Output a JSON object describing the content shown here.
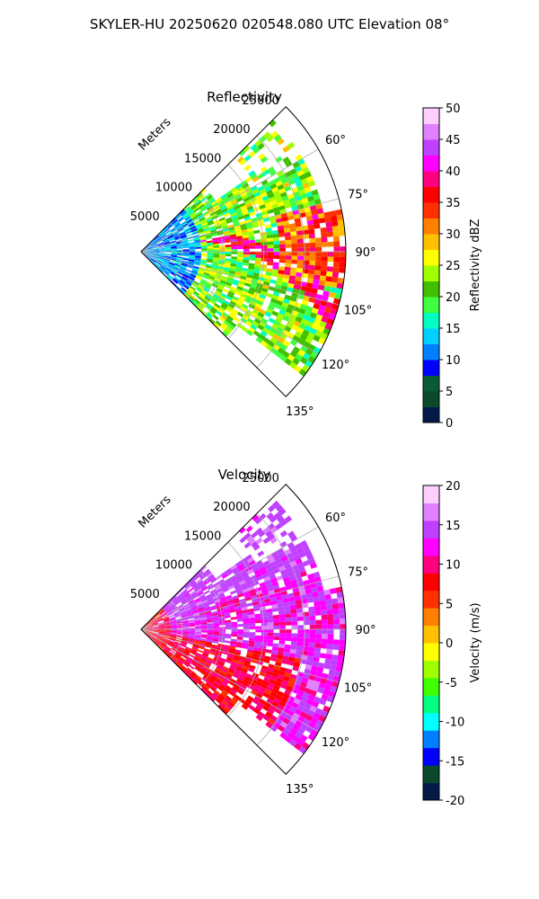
{
  "figure_title": "SKYLER-HU  20250620  020548.080 UTC Elevation 08°",
  "chart_data": [
    {
      "type": "heatmap",
      "subtype": "polar-sector (PPI)",
      "title": "Reflectivity",
      "range_label": "Meters",
      "range_ticks": [
        5000,
        10000,
        15000,
        20000,
        25000
      ],
      "range_max": 25000,
      "azimuth_range_deg": [
        45,
        135
      ],
      "azimuth_ticks_deg": [
        60,
        75,
        90,
        105,
        120,
        135
      ],
      "azimuth_tick_labels": [
        "60°",
        "75°",
        "90°",
        "105°",
        "120°",
        "135°"
      ],
      "grid": true,
      "colorbar": {
        "label": "Reflectivity dBZ",
        "range": [
          0,
          50
        ],
        "ticks": [
          0,
          5,
          10,
          15,
          20,
          25,
          30,
          35,
          40,
          45,
          50
        ],
        "colors": [
          "#041b4a",
          "#0a4a2a",
          "#0b5c35",
          "#0000ff",
          "#0080ff",
          "#00d0ff",
          "#00ffc0",
          "#40ff40",
          "#40c000",
          "#a0ff00",
          "#ffff00",
          "#ffc000",
          "#ff8000",
          "#ff3000",
          "#ff0000",
          "#ff0080",
          "#ff00ff",
          "#c040ff",
          "#e080ff",
          "#ffd0ff"
        ]
      },
      "field_summary": "Broad echo region, mostly 15–30 dBZ, with embedded bands of 35–45 dBZ near 85–110° azimuth"
    },
    {
      "type": "heatmap",
      "subtype": "polar-sector (PPI)",
      "title": "Velocity",
      "range_label": "Meters",
      "range_ticks": [
        5000,
        10000,
        15000,
        20000,
        25000
      ],
      "range_max": 25000,
      "azimuth_range_deg": [
        45,
        135
      ],
      "azimuth_ticks_deg": [
        60,
        75,
        90,
        105,
        120,
        135
      ],
      "azimuth_tick_labels": [
        "60°",
        "75°",
        "90°",
        "105°",
        "120°",
        "135°"
      ],
      "grid": true,
      "colorbar": {
        "label": "Velocity (m/s)",
        "range": [
          -20,
          20
        ],
        "ticks": [
          -20,
          -15,
          -10,
          -5,
          0,
          5,
          10,
          15,
          20
        ],
        "colors": [
          "#041b4a",
          "#0a4a2a",
          "#0000ff",
          "#0080ff",
          "#00ffff",
          "#00ff80",
          "#40ff00",
          "#a0ff00",
          "#ffff00",
          "#ffc000",
          "#ff8000",
          "#ff3000",
          "#ff0000",
          "#ff0080",
          "#ff00ff",
          "#c040ff",
          "#e080ff",
          "#ffd0ff"
        ]
      },
      "field_summary": "Mostly +10 to +15 m/s (red–magenta), orange 5–8 m/s on the southern flank"
    }
  ]
}
